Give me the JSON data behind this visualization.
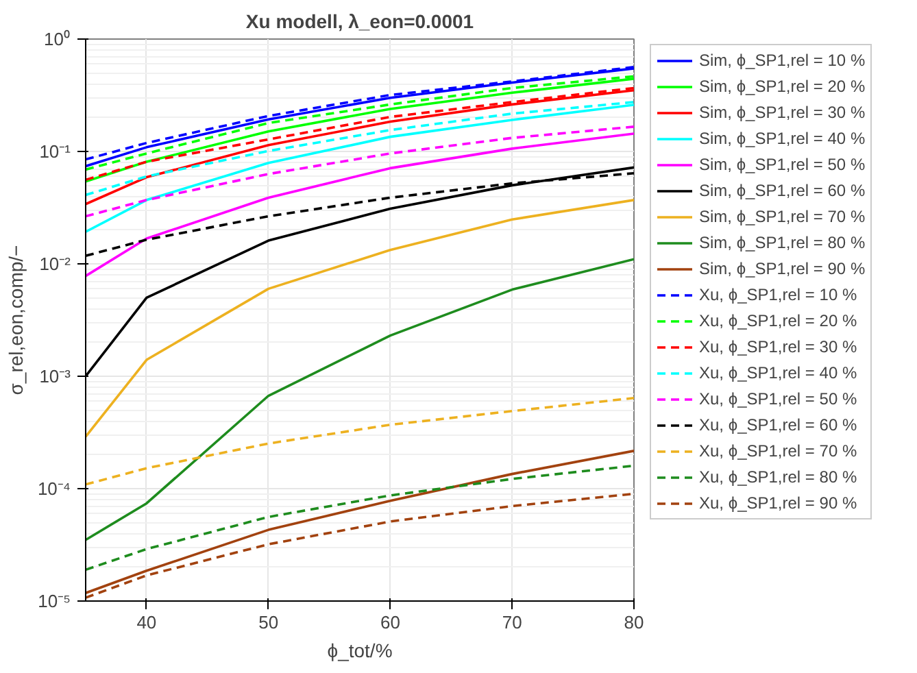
{
  "chart_data": {
    "type": "line",
    "title": "Xu modell, λ_eon=0.0001",
    "xlabel": "ϕ_tot/%",
    "ylabel": "σ_rel,eon,comp/−",
    "x": [
      35,
      40,
      50,
      60,
      70,
      80
    ],
    "xlim": [
      35,
      80
    ],
    "xticks": [
      40,
      50,
      60,
      70,
      80
    ],
    "ylim": [
      1e-05,
      1
    ],
    "log": "y",
    "yticks": [
      {
        "value": 1e-05,
        "label": "10⁻⁵"
      },
      {
        "value": 0.0001,
        "label": "10⁻⁴"
      },
      {
        "value": 0.001,
        "label": "10⁻³"
      },
      {
        "value": 0.01,
        "label": "10⁻²"
      },
      {
        "value": 0.1,
        "label": "10⁻¹"
      },
      {
        "value": 1,
        "label": "10⁰"
      }
    ],
    "grid": true,
    "legend": "right",
    "series": [
      {
        "name": "Sim, ϕ_SP1,rel = 10 %",
        "color": "#0000ff",
        "line_style": "solid",
        "values": [
          0.074,
          0.109,
          0.193,
          0.3,
          0.41,
          0.548
        ]
      },
      {
        "name": "Sim, ϕ_SP1,rel = 20 %",
        "color": "#00ff00",
        "line_style": "solid",
        "values": [
          0.054,
          0.081,
          0.151,
          0.239,
          0.333,
          0.444
        ]
      },
      {
        "name": "Sim, ϕ_SP1,rel = 30 %",
        "color": "#ff0000",
        "line_style": "solid",
        "values": [
          0.034,
          0.059,
          0.114,
          0.184,
          0.262,
          0.35
        ]
      },
      {
        "name": "Sim, ϕ_SP1,rel = 40 %",
        "color": "#00ffff",
        "line_style": "solid",
        "values": [
          0.0193,
          0.037,
          0.079,
          0.135,
          0.191,
          0.26
        ]
      },
      {
        "name": "Sim, ϕ_SP1,rel = 50 %",
        "color": "#ff00ff",
        "line_style": "solid",
        "values": [
          0.0078,
          0.0168,
          0.0388,
          0.071,
          0.106,
          0.144
        ]
      },
      {
        "name": "Sim, ϕ_SP1,rel = 60 %",
        "color": "#000000",
        "line_style": "solid",
        "values": [
          0.001,
          0.005,
          0.0161,
          0.031,
          0.05,
          0.072
        ]
      },
      {
        "name": "Sim, ϕ_SP1,rel = 70 %",
        "color": "#edb120",
        "line_style": "solid",
        "values": [
          0.00029,
          0.0014,
          0.006,
          0.0133,
          0.0248,
          0.037
        ]
      },
      {
        "name": "Sim, ϕ_SP1,rel = 80 %",
        "color": "#1e8c1e",
        "line_style": "solid",
        "values": [
          3.5e-05,
          7.4e-05,
          0.00067,
          0.0023,
          0.0059,
          0.011
        ]
      },
      {
        "name": "Sim, ϕ_SP1,rel = 90 %",
        "color": "#a2420f",
        "line_style": "solid",
        "values": [
          1.18e-05,
          1.86e-05,
          4.3e-05,
          7.8e-05,
          0.000135,
          0.000217
        ]
      },
      {
        "name": "Xu, ϕ_SP1,rel = 10 %",
        "color": "#0000ff",
        "line_style": "dashed",
        "values": [
          0.085,
          0.119,
          0.207,
          0.318,
          0.42,
          0.564
        ]
      },
      {
        "name": "Xu, ϕ_SP1,rel = 20 %",
        "color": "#00ff00",
        "line_style": "dashed",
        "values": [
          0.069,
          0.096,
          0.179,
          0.262,
          0.367,
          0.466
        ]
      },
      {
        "name": "Xu, ϕ_SP1,rel = 30 %",
        "color": "#ff0000",
        "line_style": "dashed",
        "values": [
          0.056,
          0.081,
          0.128,
          0.203,
          0.275,
          0.367
        ]
      },
      {
        "name": "Xu, ϕ_SP1,rel = 40 %",
        "color": "#00ffff",
        "line_style": "dashed",
        "values": [
          0.041,
          0.06,
          0.101,
          0.155,
          0.217,
          0.275
        ]
      },
      {
        "name": "Xu, ϕ_SP1,rel = 50 %",
        "color": "#ff00ff",
        "line_style": "dashed",
        "values": [
          0.0265,
          0.037,
          0.063,
          0.096,
          0.132,
          0.166
        ]
      },
      {
        "name": "Xu, ϕ_SP1,rel = 60 %",
        "color": "#000000",
        "line_style": "dashed",
        "values": [
          0.0118,
          0.0164,
          0.0265,
          0.0388,
          0.052,
          0.064
        ]
      },
      {
        "name": "Xu, ϕ_SP1,rel = 70 %",
        "color": "#edb120",
        "line_style": "dashed",
        "values": [
          0.000109,
          0.000152,
          0.000252,
          0.00037,
          0.00049,
          0.00064
        ]
      },
      {
        "name": "Xu, ϕ_SP1,rel = 80 %",
        "color": "#1e8c1e",
        "line_style": "dashed",
        "values": [
          1.9e-05,
          2.9e-05,
          5.6e-05,
          8.7e-05,
          0.000122,
          0.00016
        ]
      },
      {
        "name": "Xu, ϕ_SP1,rel = 90 %",
        "color": "#a2420f",
        "line_style": "dashed",
        "values": [
          1.07e-05,
          1.69e-05,
          3.2e-05,
          5.1e-05,
          7e-05,
          9e-05
        ]
      }
    ]
  }
}
